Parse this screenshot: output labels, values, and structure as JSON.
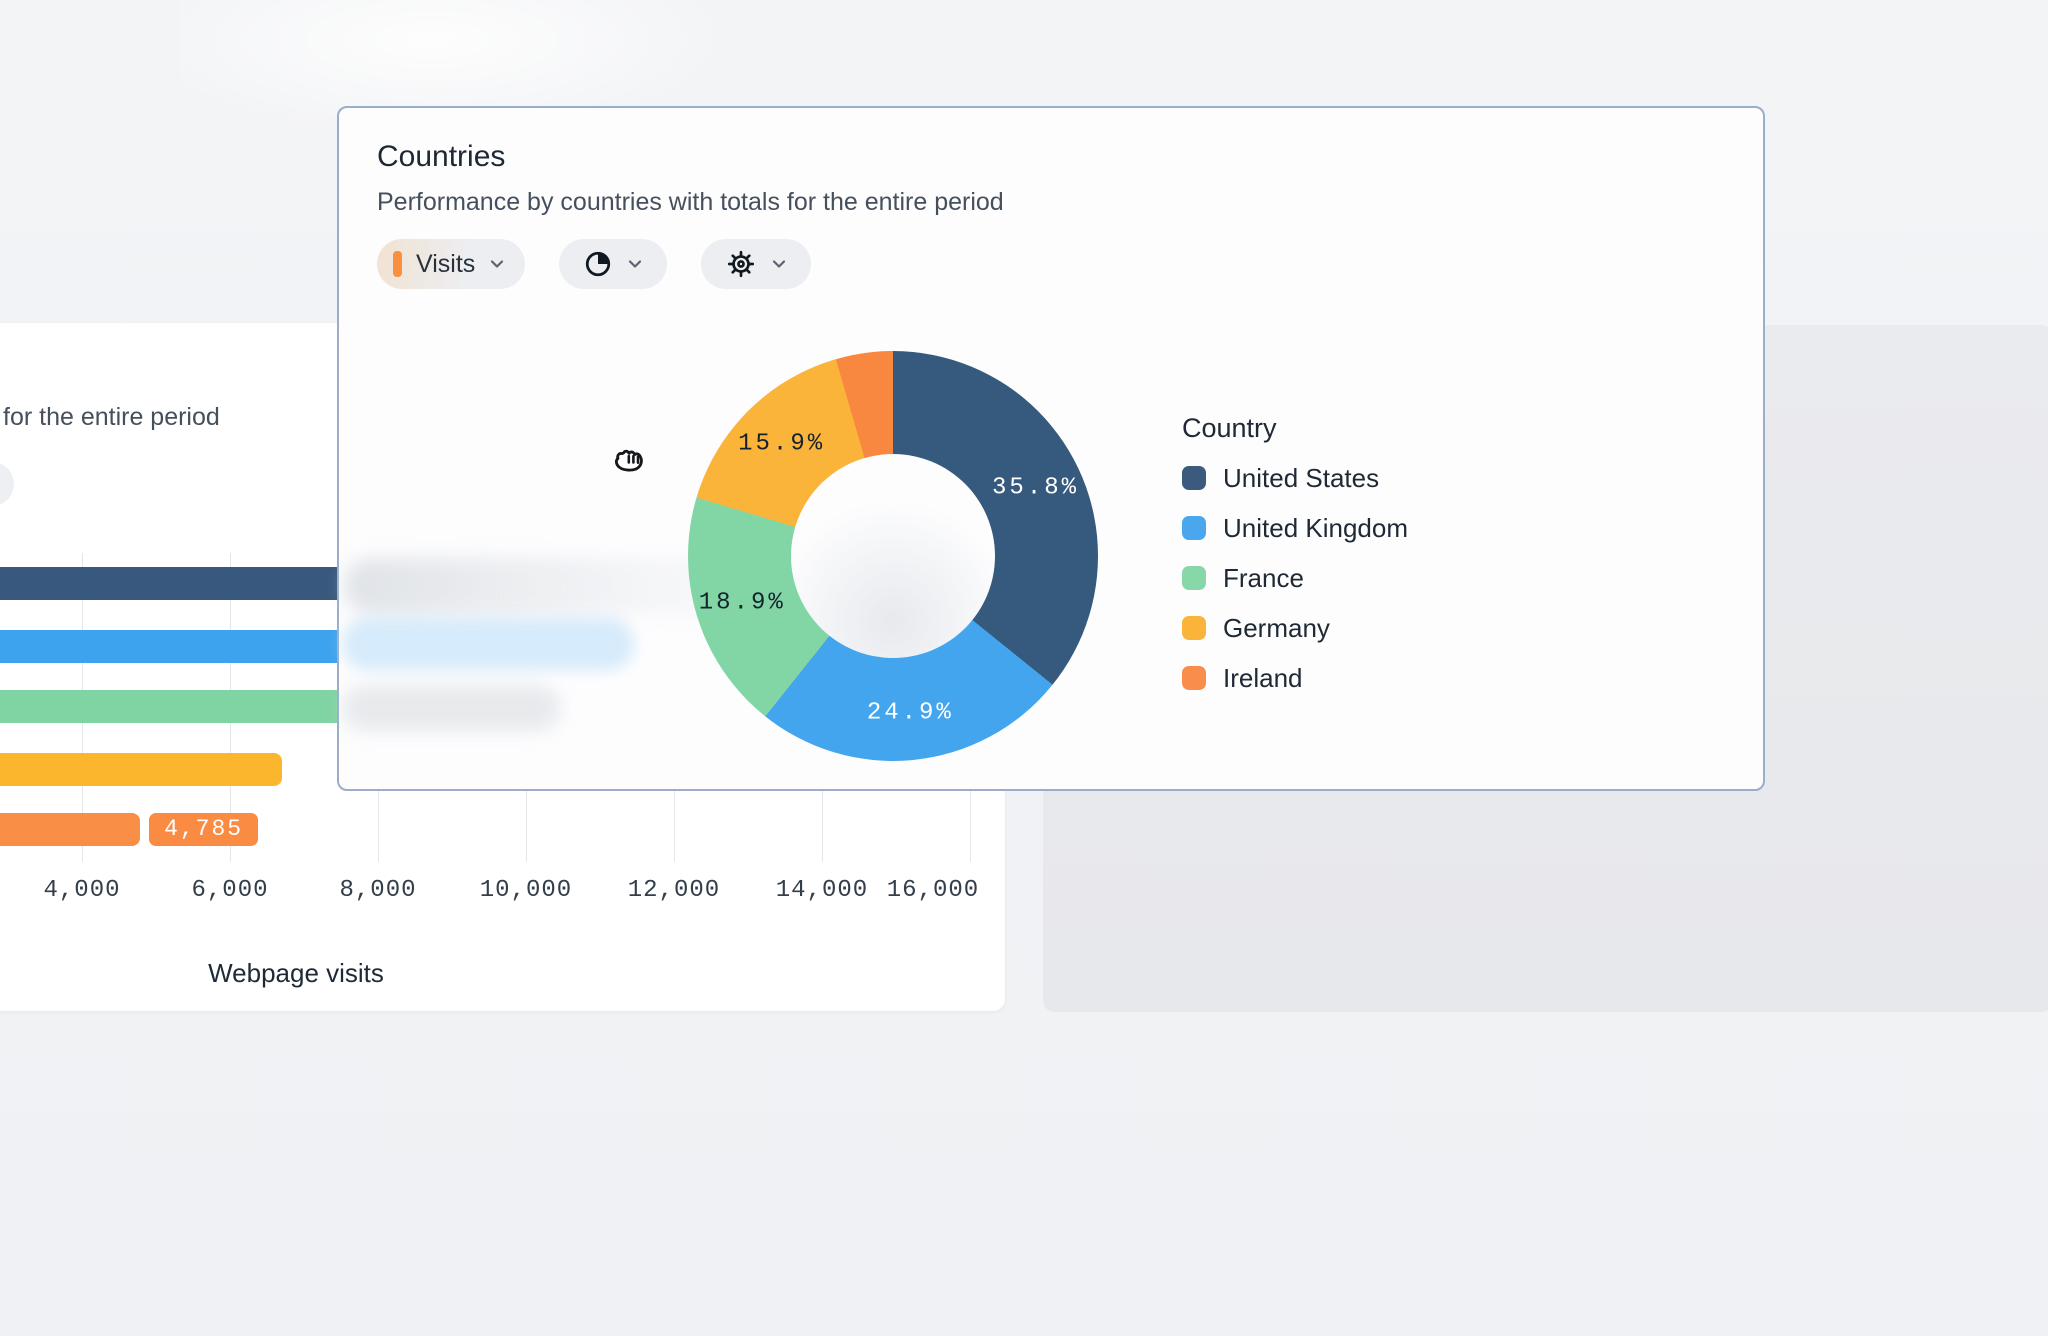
{
  "countries_card": {
    "title": "Countries",
    "subtitle": "Performance by countries with totals for the entire period",
    "toolbar": {
      "metric_button": {
        "label": "Visits",
        "swatch_color": "#f8903f"
      },
      "chart_type_button": {
        "icon": "pie-chart"
      },
      "settings_button": {
        "icon": "gear"
      }
    },
    "legend": {
      "title": "Country",
      "items": [
        {
          "label": "United States",
          "color": "#3c5a7e"
        },
        {
          "label": "United Kingdom",
          "color": "#4aa7ee"
        },
        {
          "label": "France",
          "color": "#87d7a9"
        },
        {
          "label": "Germany",
          "color": "#fbb43a"
        },
        {
          "label": "Ireland",
          "color": "#f98d4b"
        }
      ]
    }
  },
  "bar_card": {
    "subtitle_fragment": "for the entire period",
    "xlabel": "Webpage visits",
    "value_badge": "4,785"
  },
  "chart_data": [
    {
      "type": "pie",
      "subtype": "donut",
      "title": "Countries",
      "legend_position": "right",
      "start_angle_deg": 0,
      "direction": "clockwise",
      "donut_hole_ratio": 0.5,
      "slices": [
        {
          "name": "United States",
          "pct": 35.8,
          "label": "35.8%",
          "color": "#365a7e",
          "label_color": "#ffffff"
        },
        {
          "name": "United Kingdom",
          "pct": 24.9,
          "label": "24.9%",
          "color": "#44a5ef",
          "label_color": "#ffffff"
        },
        {
          "name": "France",
          "pct": 18.9,
          "label": "18.9%",
          "color": "#82d6a5",
          "label_color": "#16222f"
        },
        {
          "name": "Germany",
          "pct": 15.9,
          "label": "15.9%",
          "color": "#fbb43a",
          "label_color": "#16222f"
        },
        {
          "name": "Ireland",
          "pct": 4.5,
          "label": null,
          "color": "#f8873f",
          "label_color": null,
          "pct_inferred_from_remainder": true
        }
      ]
    },
    {
      "type": "bar",
      "orientation": "horizontal",
      "context_text": "for the entire period",
      "xlabel": "Webpage visits",
      "grid": true,
      "x_ticks": [
        {
          "label": "4,000",
          "value": 4000
        },
        {
          "label": "6,000",
          "value": 6000
        },
        {
          "label": "8,000",
          "value": 8000
        },
        {
          "label": "10,000",
          "value": 10000
        },
        {
          "label": "12,000",
          "value": 12000
        },
        {
          "label": "14,000",
          "value": 14000
        },
        {
          "label": "16,000",
          "value": 16000
        }
      ],
      "bars": [
        {
          "color": "#38597d",
          "value": null,
          "occluded_by_overlay": true
        },
        {
          "color": "#3ea3ee",
          "value": null,
          "occluded_by_overlay": true
        },
        {
          "color": "#80d4a4",
          "value": null,
          "occluded_by_overlay": true
        },
        {
          "color": "#fcb62e",
          "value": 6700,
          "estimated_from_gridlines": true
        },
        {
          "color": "#f98e47",
          "value": 4785,
          "data_label": "4,785"
        }
      ]
    }
  ],
  "colors": {
    "page_bg": "#f1f2f5",
    "right_panel_bg": "#e8e9ec",
    "card_border": "#9badcb",
    "pill_bg": "#edeef1",
    "grid_line": "#e4e6ea",
    "badge_bg": "#f98b43"
  },
  "cursor": {
    "type": "grabbing-hand"
  }
}
